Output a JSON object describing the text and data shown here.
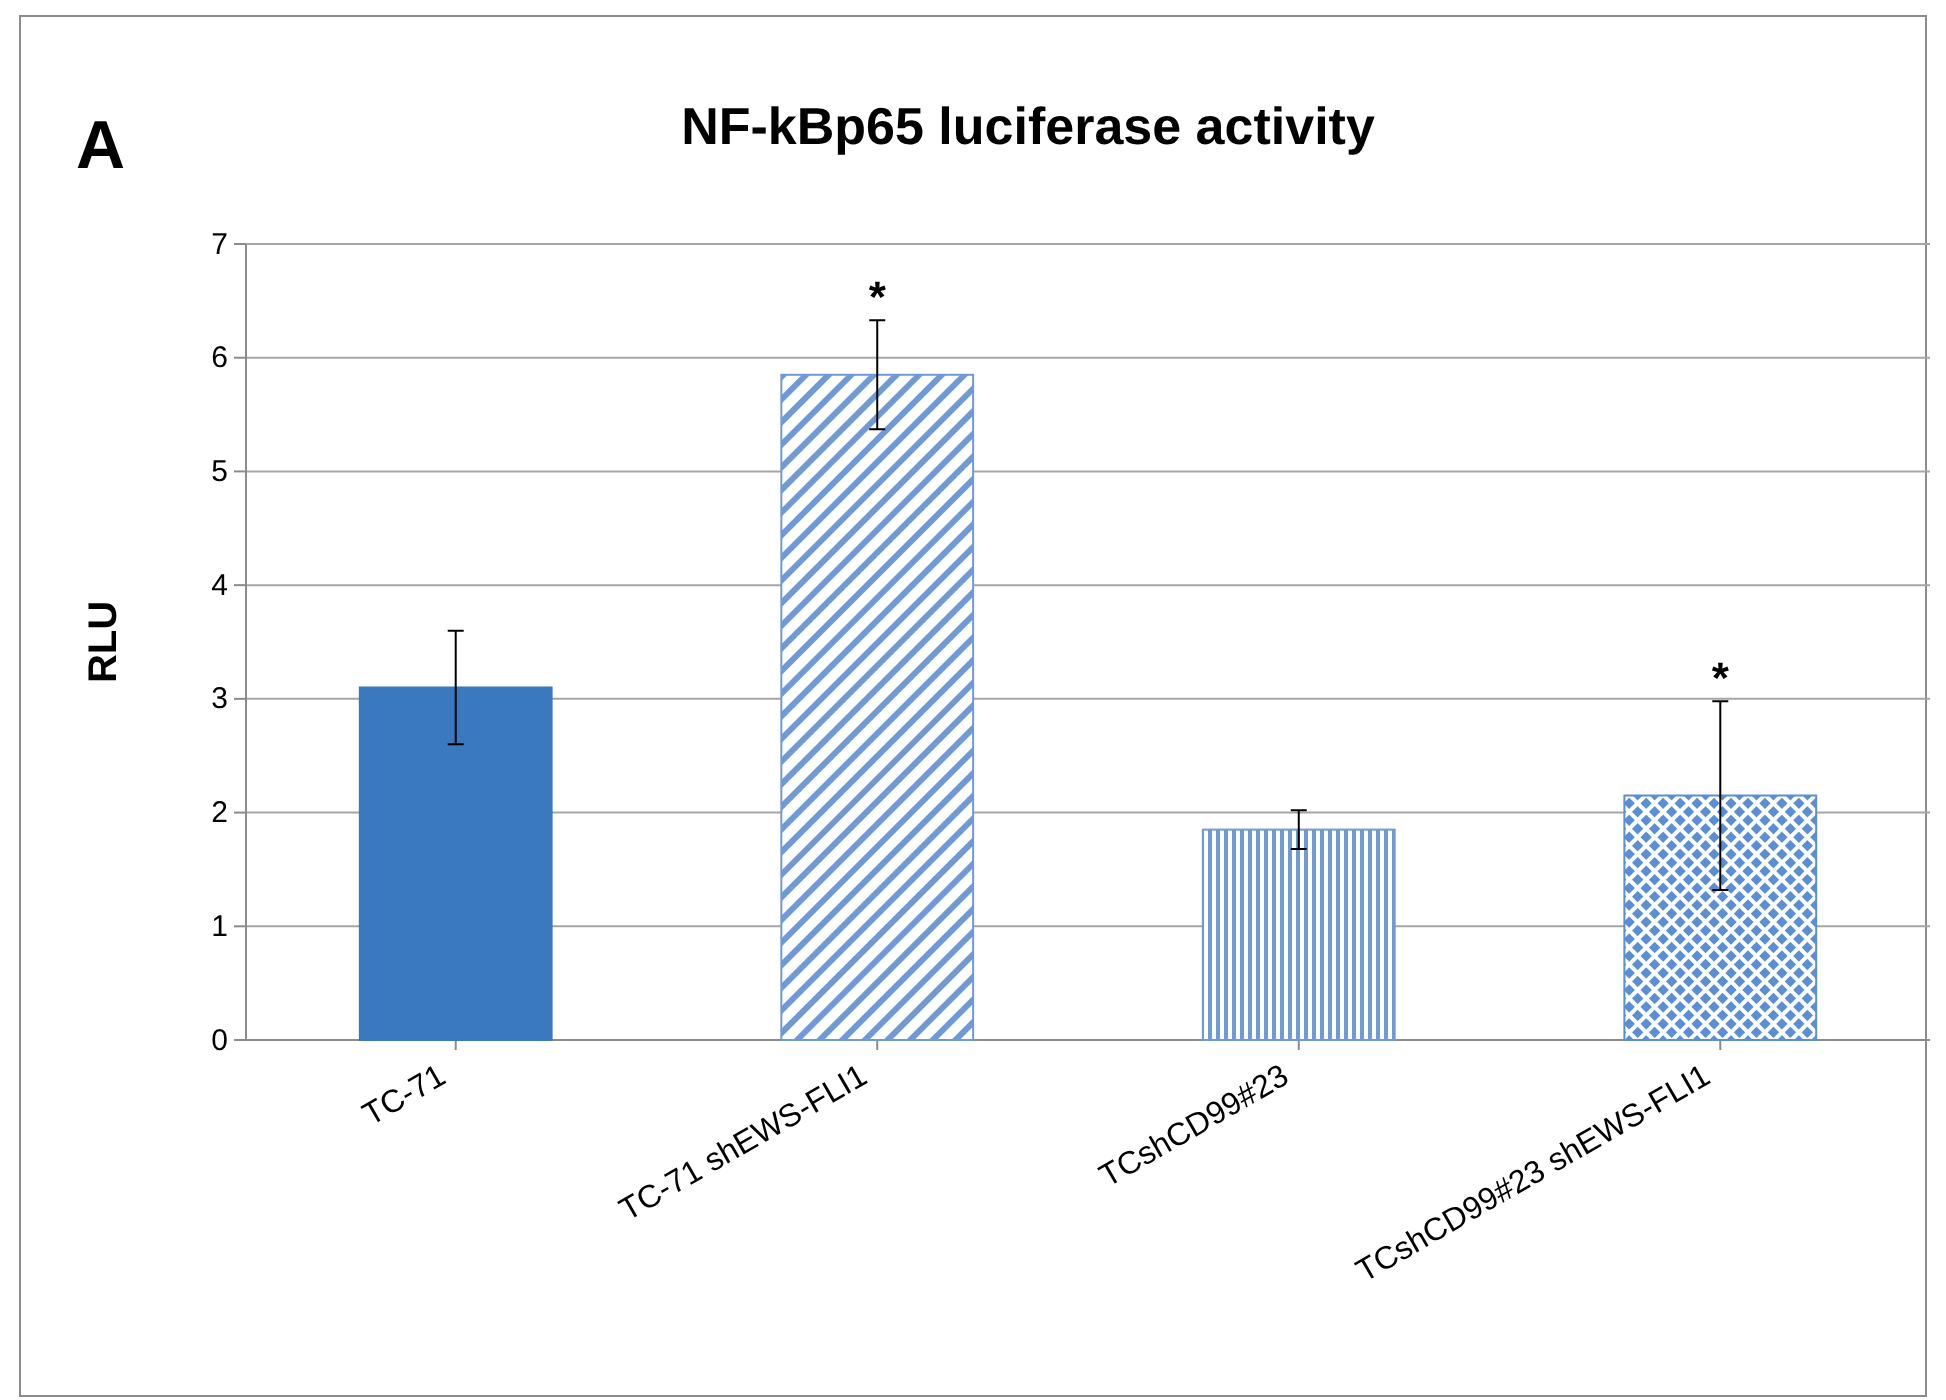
{
  "chart_data": {
    "type": "bar",
    "title": "NF-kBp65 luciferase activity",
    "ylabel": "RLU",
    "categories": [
      "TC-71",
      "TC-71 shEWS-FLI1",
      "TCshCD99#23",
      "TCshCD99#23 shEWS-FLI1"
    ],
    "values": [
      3.1,
      5.85,
      1.85,
      2.15
    ],
    "colors": [
      "#3a78c0",
      "#6f9ad6",
      "#6f9ad6",
      "#5b8fd4"
    ],
    "errors": [
      0.5,
      0.48,
      0.17,
      0.83
    ],
    "ylim": [
      0,
      7
    ],
    "yticks": [
      0,
      1,
      2,
      3,
      4,
      5,
      6,
      7
    ],
    "grid": "y",
    "annotations": [
      "A",
      {
        "text": "*",
        "x": "TC-71 shEWS-FLI1",
        "y": 6.33
      },
      {
        "text": "*",
        "x": "TCshCD99#23 shEWS-FLI1",
        "y": 2.98
      }
    ]
  }
}
